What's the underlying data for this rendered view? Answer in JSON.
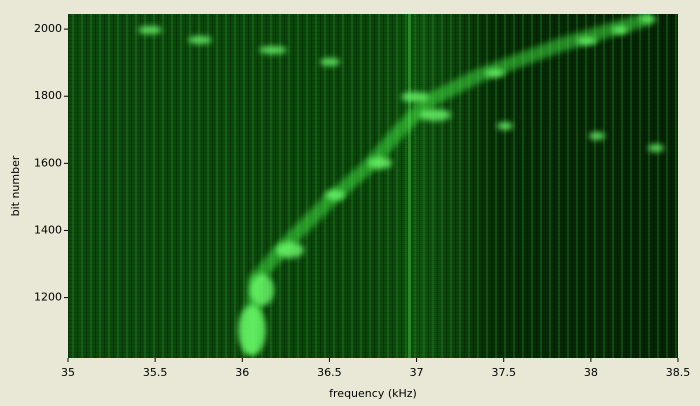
{
  "chart_data": {
    "type": "heatmap",
    "x_label": "frequency (kHz)",
    "y_label": "bit number",
    "xlim": [
      35,
      38.5
    ],
    "xticks": [
      35,
      35.5,
      36,
      36.5,
      37,
      37.5,
      38,
      38.5
    ],
    "ylim": [
      1020,
      2045
    ],
    "yticks": [
      1200,
      1400,
      1600,
      1800,
      2000
    ],
    "colormap": [
      "#001400",
      "#3cff3c"
    ]
  }
}
